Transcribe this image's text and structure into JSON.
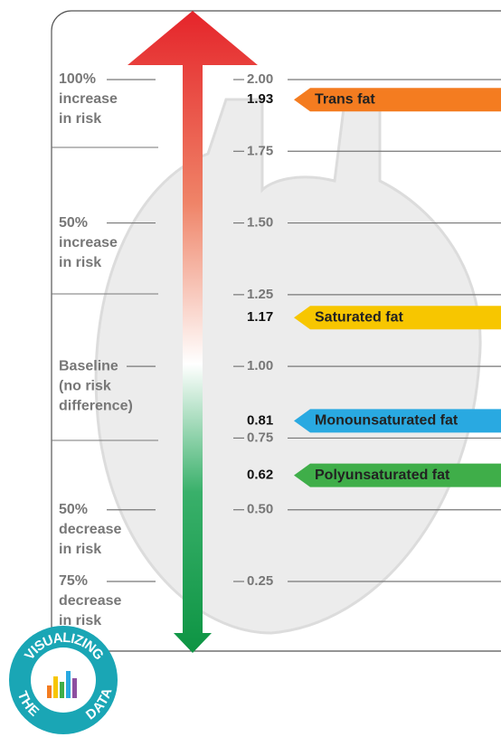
{
  "chart_data": {
    "type": "risk-scale",
    "ylim": [
      0.25,
      2
    ],
    "yticks": [
      {
        "value": 2,
        "label": "2.00"
      },
      1.75,
      {
        "value": 1.5,
        "label": "1.50"
      },
      1.25,
      {
        "value": 1,
        "label": "1.00"
      },
      0.75,
      {
        "value": 0.5,
        "label": "0.50"
      },
      0.25
    ],
    "annotations": [
      {
        "value": 2,
        "lines": [
          "100%",
          "increase",
          "in risk"
        ]
      },
      {
        "value": 1.5,
        "lines": [
          "50%",
          "increase",
          "in risk"
        ]
      },
      {
        "value": 1,
        "lines": [
          "Baseline",
          "(no risk",
          "difference)"
        ]
      },
      {
        "value": 0.5,
        "lines": [
          "50%",
          "decrease",
          "in risk"
        ]
      },
      {
        "value": 0.25,
        "lines": [
          "75%",
          "decrease",
          "in risk"
        ]
      }
    ],
    "series": [
      {
        "name": "Trans fat",
        "color": "#f47c20",
        "value": 1.93
      },
      {
        "name": "Saturated fat",
        "color": "#f7c600",
        "value": 1.17
      },
      {
        "name": "Monounsaturated fat",
        "color": "#29a9e1",
        "value": 0.81
      },
      {
        "name": "Polyunsaturated fat",
        "color": "#3fae49",
        "value": 0.62
      }
    ],
    "badge": {
      "top": "VISUALIZING",
      "left": "THE",
      "right": "DATA"
    }
  }
}
